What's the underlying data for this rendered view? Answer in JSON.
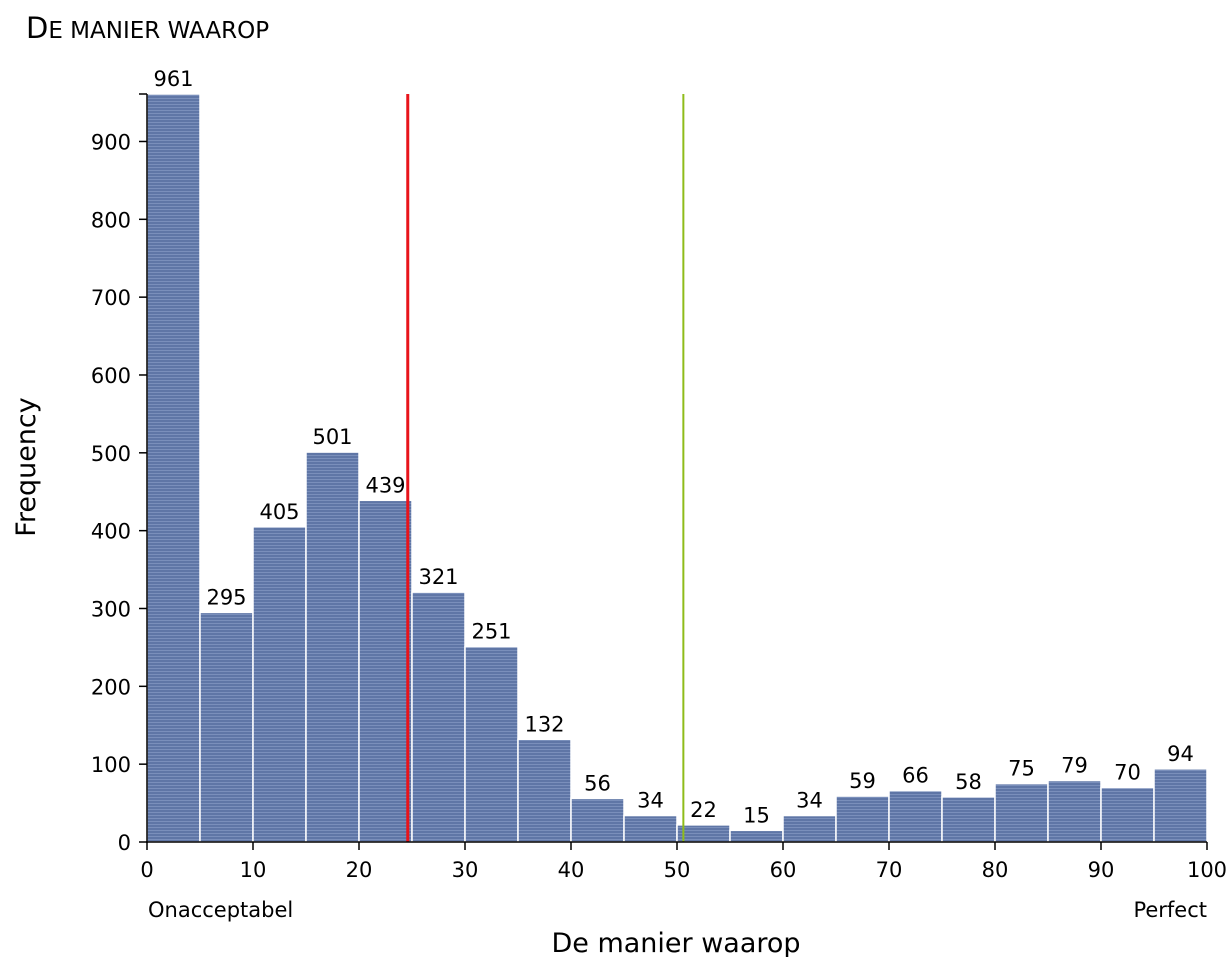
{
  "chart_data": {
    "type": "bar",
    "title_initial": "D",
    "title_rest": "E MANIER WAAROP",
    "xlabel": "De manier waarop",
    "ylabel": "Frequency",
    "x_ticks": [
      0,
      10,
      20,
      30,
      40,
      50,
      60,
      70,
      80,
      90,
      100
    ],
    "y_ticks": [
      0,
      100,
      200,
      300,
      400,
      500,
      600,
      700,
      800,
      900
    ],
    "xlim": [
      0,
      100
    ],
    "ylim": [
      0,
      961
    ],
    "bin_width": 5,
    "bins": [
      {
        "start": 0,
        "value": 961
      },
      {
        "start": 5,
        "value": 295
      },
      {
        "start": 10,
        "value": 405
      },
      {
        "start": 15,
        "value": 501
      },
      {
        "start": 20,
        "value": 439
      },
      {
        "start": 25,
        "value": 321
      },
      {
        "start": 30,
        "value": 251
      },
      {
        "start": 35,
        "value": 132
      },
      {
        "start": 40,
        "value": 56
      },
      {
        "start": 45,
        "value": 34
      },
      {
        "start": 50,
        "value": 22
      },
      {
        "start": 55,
        "value": 15
      },
      {
        "start": 60,
        "value": 34
      },
      {
        "start": 65,
        "value": 59
      },
      {
        "start": 70,
        "value": 66
      },
      {
        "start": 75,
        "value": 58
      },
      {
        "start": 80,
        "value": 75
      },
      {
        "start": 85,
        "value": 79
      },
      {
        "start": 90,
        "value": 70
      },
      {
        "start": 95,
        "value": 94
      }
    ],
    "reference_lines": [
      {
        "name": "red-reference-line",
        "x": 24.6,
        "color": "#e8141b"
      },
      {
        "name": "green-reference-line",
        "x": 50.6,
        "color": "#8fbc1a"
      }
    ],
    "x_end_labels": {
      "left": "Onacceptabel",
      "right": "Perfect"
    },
    "bar_color": "#5f76a6",
    "bar_outline_color": "#ffffff",
    "grid": false,
    "legend": "none"
  }
}
